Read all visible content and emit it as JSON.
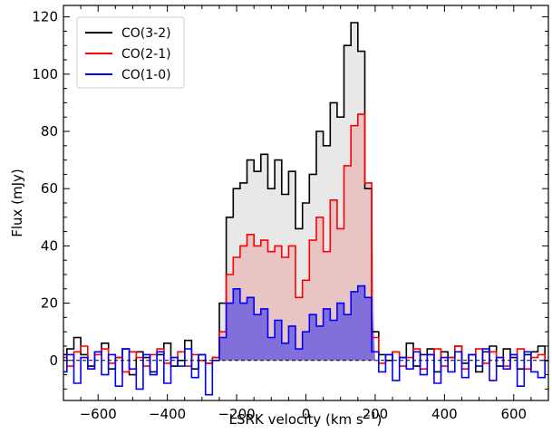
{
  "chart_data": {
    "type": "line",
    "title": "",
    "xlabel": "LSRK velocity (km s",
    "xlabel_sup": "−1",
    "xlabel_end": ")",
    "ylabel": "Flux (mJy)",
    "xlim": [
      -700,
      700
    ],
    "ylim": [
      -14,
      124
    ],
    "x_ticks": [
      -600,
      -400,
      -200,
      0,
      200,
      400,
      600
    ],
    "x_tick_labels": [
      "−600",
      "−400",
      "−200",
      "0",
      "200",
      "400",
      "600"
    ],
    "y_ticks": [
      0,
      20,
      40,
      60,
      80,
      100,
      120
    ],
    "y_tick_labels": [
      "0",
      "20",
      "40",
      "60",
      "80",
      "100",
      "120"
    ],
    "grid": false,
    "legend_position": "top-left",
    "zero_line": 0,
    "series": [
      {
        "name": "CO(3-2)",
        "color": "#000000",
        "fill": "#e6e6e6",
        "step": 20,
        "x": [
          -700,
          -680,
          -660,
          -640,
          -620,
          -600,
          -580,
          -560,
          -540,
          -520,
          -500,
          -480,
          -460,
          -440,
          -420,
          -400,
          -380,
          -360,
          -340,
          -320,
          -300,
          -280,
          -260,
          -240,
          -220,
          -200,
          -180,
          -160,
          -140,
          -120,
          -100,
          -80,
          -60,
          -40,
          -20,
          0,
          20,
          40,
          60,
          80,
          100,
          120,
          140,
          160,
          180,
          200,
          220,
          240,
          260,
          280,
          300,
          320,
          340,
          360,
          380,
          400,
          420,
          440,
          460,
          480,
          500,
          520,
          540,
          560,
          580,
          600,
          620,
          640,
          660,
          680,
          700
        ],
        "values": [
          2,
          4,
          8,
          2,
          -2,
          3,
          6,
          -3,
          1,
          4,
          -5,
          3,
          1,
          -4,
          2,
          6,
          -2,
          0,
          7,
          -3,
          2,
          -1,
          1,
          20,
          50,
          60,
          62,
          70,
          66,
          72,
          60,
          70,
          58,
          66,
          46,
          55,
          65,
          80,
          75,
          90,
          85,
          110,
          118,
          108,
          60,
          10,
          2,
          0,
          3,
          1,
          6,
          -2,
          2,
          4,
          -4,
          3,
          1,
          5,
          -1,
          2,
          -4,
          3,
          5,
          -2,
          4,
          1,
          -3,
          2,
          3,
          5,
          0
        ]
      },
      {
        "name": "CO(2-1)",
        "color": "#ff0000",
        "fill": "#e8c0c0",
        "step": 20,
        "x": [
          -700,
          -680,
          -660,
          -640,
          -620,
          -600,
          -580,
          -560,
          -540,
          -520,
          -500,
          -480,
          -460,
          -440,
          -420,
          -400,
          -380,
          -360,
          -340,
          -320,
          -300,
          -280,
          -260,
          -240,
          -220,
          -200,
          -180,
          -160,
          -140,
          -120,
          -100,
          -80,
          -60,
          -40,
          -20,
          0,
          20,
          40,
          60,
          80,
          100,
          120,
          140,
          160,
          180,
          200,
          220,
          240,
          260,
          280,
          300,
          320,
          340,
          360,
          380,
          400,
          420,
          440,
          460,
          480,
          500,
          520,
          540,
          560,
          580,
          600,
          620,
          640,
          660,
          680,
          700
        ],
        "values": [
          1,
          -2,
          3,
          5,
          -3,
          2,
          4,
          -1,
          1,
          -4,
          3,
          1,
          -2,
          2,
          4,
          -1,
          1,
          3,
          -2,
          2,
          0,
          -1,
          1,
          10,
          30,
          36,
          40,
          44,
          40,
          42,
          38,
          40,
          36,
          40,
          22,
          28,
          42,
          50,
          38,
          56,
          46,
          68,
          82,
          86,
          62,
          8,
          -1,
          2,
          3,
          -2,
          1,
          4,
          -3,
          2,
          4,
          -2,
          1,
          5,
          -3,
          2,
          4,
          -1,
          3,
          1,
          -2,
          2,
          4,
          -3,
          1,
          2,
          0
        ]
      },
      {
        "name": "CO(1-0)",
        "color": "#0000ff",
        "fill": "#7766dd",
        "step": 20,
        "x": [
          -700,
          -680,
          -660,
          -640,
          -620,
          -600,
          -580,
          -560,
          -540,
          -520,
          -500,
          -480,
          -460,
          -440,
          -420,
          -400,
          -380,
          -360,
          -340,
          -320,
          -300,
          -280,
          -260,
          -240,
          -220,
          -200,
          -180,
          -160,
          -140,
          -120,
          -100,
          -80,
          -60,
          -40,
          -20,
          0,
          20,
          40,
          60,
          80,
          100,
          120,
          140,
          160,
          180,
          200,
          220,
          240,
          260,
          280,
          300,
          320,
          340,
          360,
          380,
          400,
          420,
          440,
          460,
          480,
          500,
          520,
          540,
          560,
          580,
          600,
          620,
          640,
          660,
          680,
          700
        ],
        "values": [
          -4,
          2,
          -8,
          1,
          -3,
          3,
          -5,
          2,
          -9,
          4,
          -3,
          -10,
          2,
          -5,
          3,
          -8,
          1,
          -2,
          4,
          -6,
          2,
          -12,
          0,
          8,
          20,
          25,
          20,
          22,
          16,
          18,
          8,
          14,
          6,
          12,
          4,
          10,
          16,
          12,
          18,
          14,
          20,
          16,
          24,
          26,
          22,
          3,
          -4,
          2,
          -7,
          1,
          -3,
          3,
          -5,
          2,
          -8,
          1,
          -4,
          3,
          -6,
          2,
          -2,
          4,
          -7,
          1,
          -3,
          2,
          -9,
          3,
          -4,
          -6,
          0
        ]
      }
    ]
  }
}
